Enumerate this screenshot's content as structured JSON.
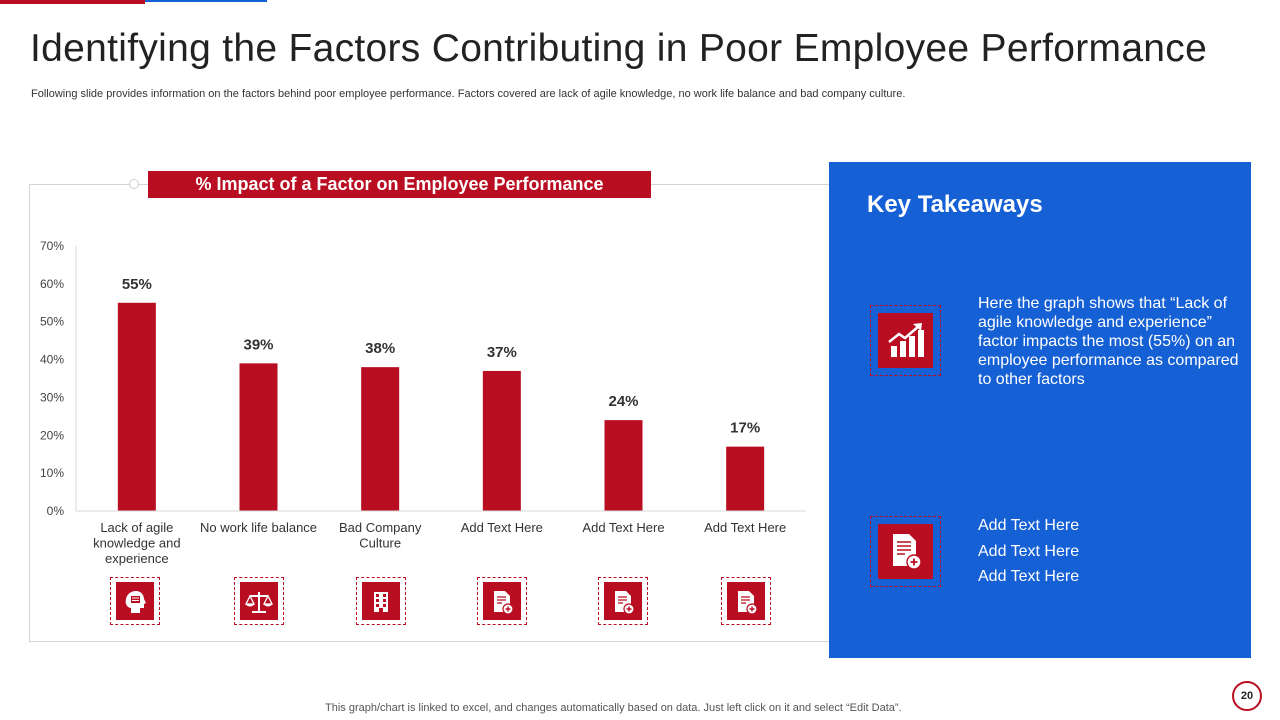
{
  "title": "Identifying the Factors Contributing in Poor Employee Performance",
  "subtitle": "Following slide provides information on the factors behind poor employee performance. Factors covered are lack of agile knowledge, no work life balance and bad company culture.",
  "chart_data": {
    "type": "bar",
    "title": "% Impact of  a Factor on Employee Performance",
    "categories": [
      [
        "Lack of agile",
        "knowledge and",
        "experience"
      ],
      [
        "No work life balance"
      ],
      [
        "Bad Company",
        "Culture"
      ],
      [
        "Add Text Here"
      ],
      [
        "Add Text Here"
      ],
      [
        "Add Text Here"
      ]
    ],
    "values": [
      55,
      39,
      38,
      37,
      24,
      17
    ],
    "data_labels": [
      "55%",
      "39%",
      "38%",
      "37%",
      "24%",
      "17%"
    ],
    "ylim": [
      0,
      70
    ],
    "yticks": [
      "0%",
      "10%",
      "20%",
      "30%",
      "40%",
      "50%",
      "60%",
      "70%"
    ],
    "bar_color": "#b90e22",
    "grid": false
  },
  "category_icons": [
    "thinking-head-icon",
    "balance-scale-icon",
    "office-building-icon",
    "document-add-icon",
    "document-add-icon",
    "document-add-icon"
  ],
  "key_takeaways": {
    "title": "Key Takeaways",
    "text": "Here the graph shows that “Lack of agile knowledge and experience” factor impacts the most (55%) on an employee performance as compared to other factors",
    "items": [
      "Add Text Here",
      "Add Text Here",
      "Add Text Here"
    ],
    "panel_color": "#1560d4"
  },
  "footer": {
    "note": "This graph/chart is linked to excel,  and changes automatically based on data. Just left click on it and select “Edit Data”.",
    "page_number": "20"
  }
}
